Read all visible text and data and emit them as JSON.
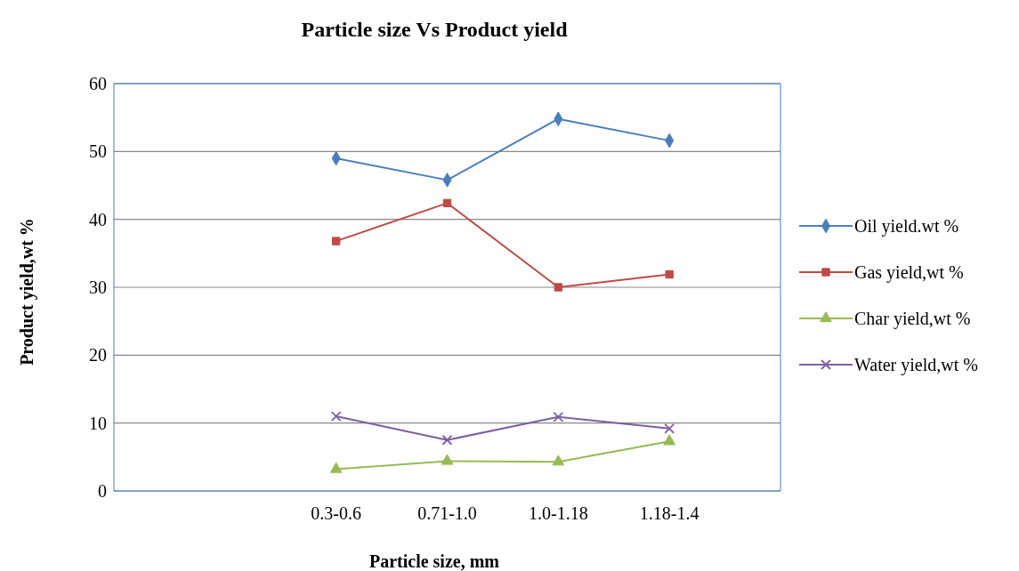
{
  "chart_data": {
    "type": "line",
    "title": "Particle size Vs Product yield",
    "xlabel": "Particle size, mm",
    "ylabel": "Product yield,wt %",
    "categories": [
      null,
      null,
      "0.3-0.6",
      "0.71-1.0",
      "1.0-1.18",
      "1.18-1.4",
      null
    ],
    "series": [
      {
        "name": "Oil yield.wt %",
        "color": "#4a7ebb",
        "marker": "diamond",
        "values": [
          null,
          null,
          49,
          45.8,
          54.8,
          51.6,
          null
        ]
      },
      {
        "name": "Gas yield,wt %",
        "color": "#be4b48",
        "marker": "square",
        "values": [
          null,
          null,
          36.8,
          42.4,
          30,
          31.9,
          null
        ]
      },
      {
        "name": "Char yield,wt %",
        "color": "#98b954",
        "marker": "triangle",
        "values": [
          null,
          null,
          3.2,
          4.4,
          4.3,
          7.3,
          null
        ]
      },
      {
        "name": "Water yield,wt %",
        "color": "#7d60a0",
        "marker": "cross",
        "values": [
          null,
          null,
          11,
          7.5,
          10.9,
          9.2,
          null
        ]
      }
    ],
    "ylim": [
      0,
      60
    ],
    "yticks": [
      0,
      10,
      20,
      30,
      40,
      50,
      60
    ],
    "grid": "y",
    "legend": "right",
    "line_style": "solid"
  }
}
